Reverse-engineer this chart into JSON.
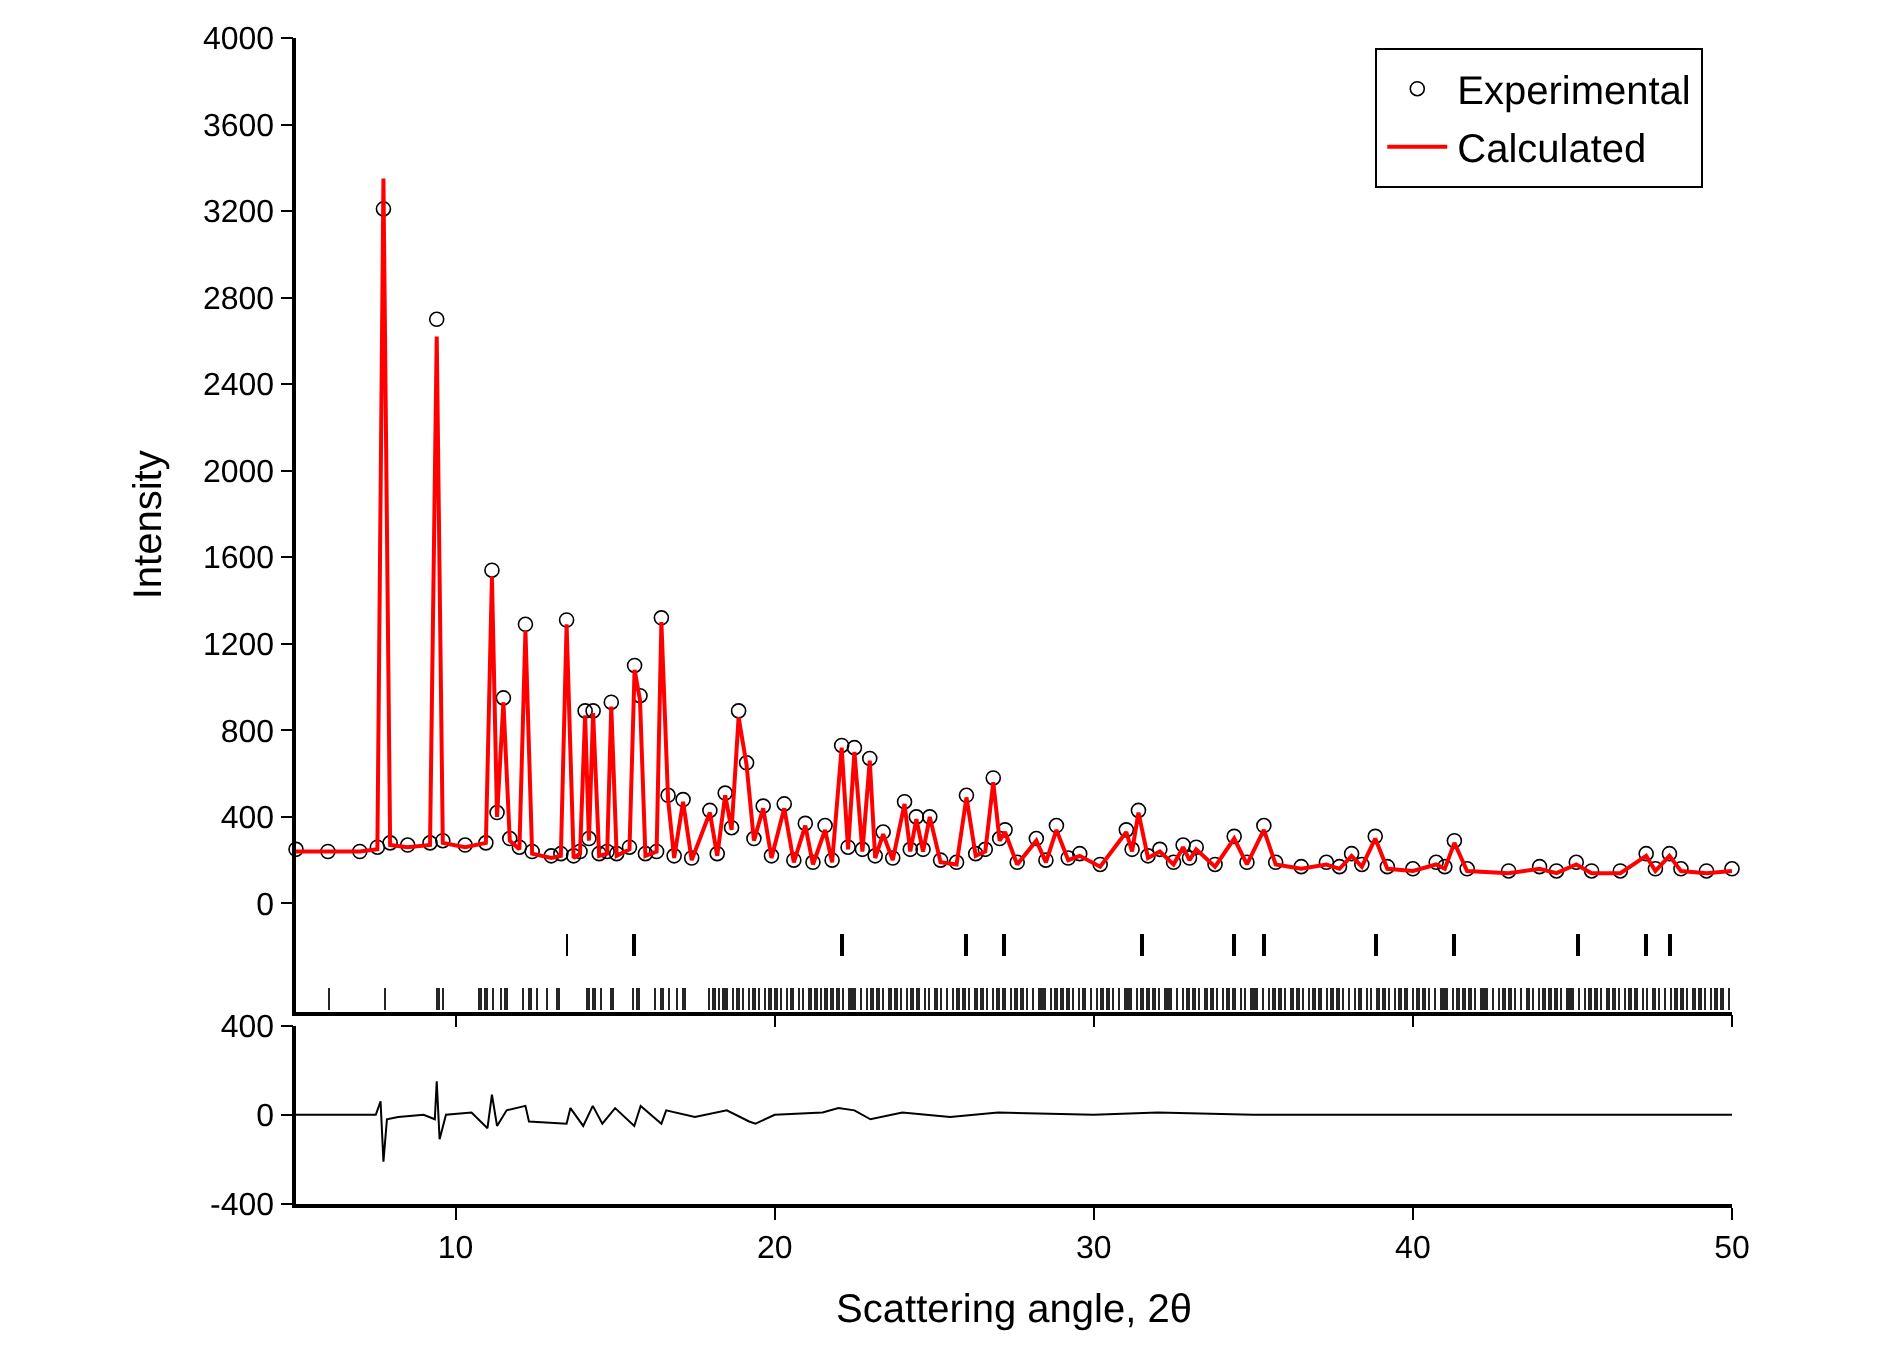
{
  "chart_data": [
    {
      "type": "line",
      "ylabel": "Intensity",
      "xlim": [
        5,
        50
      ],
      "xticks": [
        10,
        20,
        30,
        40,
        50
      ],
      "ylim": [
        -500,
        4000
      ],
      "yticks": [
        0,
        400,
        800,
        1200,
        1600,
        2000,
        2400,
        2800,
        3200,
        3600,
        4000
      ],
      "tick_labels": "y",
      "grid": false,
      "legend": "top right",
      "line_style": "solid",
      "x": [
        5.0,
        6.0,
        7.0,
        7.55,
        7.74,
        7.95,
        8.5,
        9.2,
        9.41,
        9.6,
        10.3,
        10.95,
        11.14,
        11.3,
        11.5,
        11.7,
        12.0,
        12.19,
        12.4,
        13.0,
        13.3,
        13.48,
        13.7,
        13.9,
        14.06,
        14.18,
        14.31,
        14.5,
        14.75,
        14.88,
        15.05,
        15.45,
        15.61,
        15.78,
        15.95,
        16.3,
        16.45,
        16.66,
        16.85,
        17.13,
        17.4,
        17.97,
        18.2,
        18.45,
        18.65,
        18.87,
        19.12,
        19.35,
        19.64,
        19.9,
        20.3,
        20.6,
        20.96,
        21.2,
        21.58,
        21.8,
        22.1,
        22.3,
        22.5,
        22.75,
        22.98,
        23.15,
        23.4,
        23.7,
        24.07,
        24.25,
        24.44,
        24.65,
        24.86,
        25.2,
        25.7,
        26.01,
        26.3,
        26.6,
        26.85,
        27.05,
        27.22,
        27.6,
        28.2,
        28.5,
        28.83,
        29.2,
        29.56,
        30.2,
        31.02,
        31.2,
        31.4,
        31.7,
        32.07,
        32.5,
        32.8,
        33.0,
        33.21,
        33.8,
        34.4,
        34.8,
        35.33,
        35.7,
        36.5,
        37.29,
        37.7,
        38.08,
        38.4,
        38.82,
        39.2,
        40.0,
        40.73,
        41.0,
        41.3,
        41.7,
        43.0,
        43.97,
        44.5,
        45.12,
        45.6,
        46.5,
        47.31,
        47.6,
        48.04,
        48.4,
        49.2,
        50.0
      ],
      "series": [
        {
          "name": "Experimental",
          "type": "scatter",
          "marker": "circle",
          "color": "#000000",
          "values": [
            250,
            240,
            240,
            260,
            3210,
            280,
            270,
            280,
            2700,
            290,
            270,
            280,
            1540,
            420,
            950,
            300,
            260,
            1290,
            240,
            220,
            230,
            1310,
            220,
            240,
            890,
            300,
            890,
            230,
            240,
            930,
            230,
            260,
            1100,
            960,
            230,
            240,
            1320,
            500,
            220,
            480,
            210,
            430,
            230,
            510,
            350,
            890,
            650,
            300,
            450,
            220,
            460,
            200,
            370,
            190,
            360,
            200,
            730,
            260,
            720,
            250,
            670,
            220,
            330,
            210,
            470,
            250,
            400,
            250,
            400,
            200,
            190,
            500,
            230,
            250,
            580,
            300,
            340,
            190,
            300,
            200,
            360,
            210,
            230,
            180,
            340,
            250,
            430,
            220,
            250,
            190,
            270,
            210,
            260,
            180,
            310,
            190,
            360,
            190,
            170,
            190,
            170,
            230,
            180,
            310,
            170,
            160,
            190,
            170,
            290,
            160,
            150,
            170,
            150,
            190,
            150,
            150,
            230,
            160,
            230,
            160,
            150,
            160
          ]
        },
        {
          "name": "Calculated",
          "type": "line",
          "marker": "none",
          "color": "#ff0000",
          "values": [
            240,
            240,
            240,
            250,
            3350,
            270,
            260,
            270,
            2620,
            280,
            260,
            280,
            1510,
            400,
            930,
            290,
            250,
            1260,
            230,
            210,
            220,
            1290,
            210,
            230,
            870,
            290,
            880,
            220,
            230,
            910,
            220,
            250,
            1080,
            940,
            220,
            240,
            1300,
            480,
            210,
            470,
            200,
            420,
            220,
            500,
            340,
            860,
            640,
            290,
            440,
            210,
            440,
            190,
            360,
            180,
            340,
            190,
            720,
            250,
            700,
            240,
            660,
            210,
            320,
            200,
            460,
            240,
            390,
            240,
            400,
            190,
            180,
            490,
            220,
            240,
            560,
            290,
            330,
            180,
            290,
            190,
            340,
            200,
            220,
            170,
            330,
            240,
            420,
            210,
            240,
            180,
            260,
            200,
            250,
            170,
            300,
            180,
            340,
            180,
            160,
            180,
            160,
            220,
            170,
            300,
            160,
            150,
            180,
            160,
            280,
            150,
            140,
            160,
            140,
            180,
            140,
            140,
            220,
            150,
            220,
            150,
            140,
            150
          ]
        },
        {
          "type": "bar",
          "color": "#000000",
          "x": [
            13.48,
            15.59,
            22.1,
            25.99,
            27.18,
            31.5,
            34.39,
            35.33,
            38.83,
            41.28,
            45.16,
            47.29,
            48.04
          ],
          "base": [
            -240,
            -240,
            -240,
            -240,
            -240,
            -240,
            -240,
            -240,
            -240,
            -240,
            -240,
            -240,
            -240
          ],
          "values": [
            100,
            100,
            100,
            100,
            100,
            100,
            100,
            100,
            100,
            100,
            100,
            100,
            100
          ]
        },
        {
          "type": "bar",
          "color": "#262626",
          "x": [
            6.03,
            7.78,
            9.44,
            9.61,
            10.76,
            10.94,
            11.17,
            11.41,
            11.59,
            12.12,
            12.33,
            12.54,
            12.86,
            13.22,
            14.14,
            14.34,
            14.55,
            14.9,
            15.55,
            15.73,
            16.26,
            16.47,
            16.7,
            16.94,
            17.15,
            17.94,
            18.1,
            18.25,
            18.4,
            18.52,
            18.7,
            18.85,
            19.0,
            19.2,
            19.35,
            19.5,
            19.7,
            19.85,
            20.05,
            20.2,
            20.4,
            20.55,
            20.75,
            20.9,
            21.1,
            21.3,
            21.45,
            21.6,
            21.8,
            22.0,
            22.15,
            22.35,
            22.5,
            22.7,
            22.9,
            23.05,
            23.25,
            23.4,
            23.6,
            23.8,
            23.95,
            24.15,
            24.3,
            24.5,
            24.7,
            24.85,
            25.05,
            25.2,
            25.4,
            25.6,
            25.75,
            25.95,
            26.1,
            26.3,
            26.5,
            26.65,
            26.85,
            27.0,
            27.2,
            27.4,
            27.55,
            27.75,
            27.9,
            28.1,
            28.3,
            28.45,
            28.65,
            28.8,
            29.0,
            29.2,
            29.35,
            29.55,
            29.7,
            29.9,
            30.1,
            30.25,
            30.45,
            30.6,
            30.8,
            31.0,
            31.15,
            31.35,
            31.5,
            31.7,
            31.9,
            32.05,
            32.25,
            32.4,
            32.6,
            32.8,
            32.95,
            33.15,
            33.3,
            33.5,
            33.7,
            33.85,
            34.05,
            34.2,
            34.4,
            34.6,
            34.75,
            34.95,
            35.1,
            35.3,
            35.5,
            35.65,
            35.85,
            36.0,
            36.2,
            36.4,
            36.55,
            36.75,
            36.9,
            37.1,
            37.3,
            37.45,
            37.65,
            37.8,
            38.0,
            38.2,
            38.35,
            38.55,
            38.7,
            38.9,
            39.1,
            39.25,
            39.45,
            39.6,
            39.8,
            40.0,
            40.15,
            40.35,
            40.5,
            40.7,
            40.9,
            41.05,
            41.25,
            41.4,
            41.6,
            41.8,
            41.95,
            42.15,
            42.3,
            42.5,
            42.7,
            42.85,
            43.05,
            43.2,
            43.4,
            43.6,
            43.75,
            43.95,
            44.1,
            44.3,
            44.5,
            44.65,
            44.85,
            45.0,
            45.2,
            45.4,
            45.55,
            45.75,
            45.9,
            46.1,
            46.3,
            46.45,
            46.65,
            46.8,
            47.0,
            47.2,
            47.35,
            47.55,
            47.7,
            47.9,
            48.1,
            48.25,
            48.45,
            48.6,
            48.8,
            49.0,
            49.15,
            49.35,
            49.5,
            49.7,
            49.9
          ],
          "base": [
            -490,
            -490,
            -490,
            -490,
            -490,
            -490,
            -490,
            -490,
            -490,
            -490,
            -490,
            -490,
            -490,
            -490,
            -490,
            -490,
            -490,
            -490,
            -490,
            -490,
            -490,
            -490,
            -490,
            -490,
            -490,
            -490,
            -490,
            -490,
            -490,
            -490,
            -490,
            -490,
            -490,
            -490,
            -490,
            -490,
            -490,
            -490,
            -490,
            -490,
            -490,
            -490,
            -490,
            -490,
            -490,
            -490,
            -490,
            -490,
            -490,
            -490,
            -490,
            -490,
            -490,
            -490,
            -490,
            -490,
            -490,
            -490,
            -490,
            -490,
            -490,
            -490,
            -490,
            -490,
            -490,
            -490,
            -490,
            -490,
            -490,
            -490,
            -490,
            -490,
            -490,
            -490,
            -490,
            -490,
            -490,
            -490,
            -490,
            -490,
            -490,
            -490,
            -490,
            -490,
            -490,
            -490,
            -490,
            -490,
            -490,
            -490,
            -490,
            -490,
            -490,
            -490,
            -490,
            -490,
            -490,
            -490,
            -490,
            -490,
            -490,
            -490,
            -490,
            -490,
            -490,
            -490,
            -490,
            -490,
            -490,
            -490,
            -490,
            -490,
            -490,
            -490,
            -490,
            -490,
            -490,
            -490,
            -490,
            -490,
            -490,
            -490,
            -490,
            -490,
            -490,
            -490,
            -490,
            -490,
            -490,
            -490,
            -490,
            -490,
            -490,
            -490,
            -490,
            -490,
            -490,
            -490,
            -490,
            -490,
            -490,
            -490,
            -490,
            -490,
            -490,
            -490,
            -490,
            -490,
            -490,
            -490,
            -490,
            -490,
            -490,
            -490,
            -490,
            -490,
            -490,
            -490,
            -490,
            -490,
            -490,
            -490,
            -490,
            -490,
            -490,
            -490,
            -490,
            -490,
            -490,
            -490,
            -490,
            -490,
            -490,
            -490,
            -490,
            -490,
            -490,
            -490,
            -490,
            -490,
            -490,
            -490,
            -490,
            -490,
            -490,
            -490,
            -490,
            -490,
            -490,
            -490,
            -490,
            -490,
            -490,
            -490,
            -490,
            -490,
            -490,
            -490,
            -490,
            -490,
            -490,
            -490,
            -490,
            -490,
            -490
          ],
          "values": [
            100,
            100,
            100,
            100,
            100,
            100,
            100,
            100,
            100,
            100,
            100,
            100,
            100,
            100,
            100,
            100,
            100,
            100,
            100,
            100,
            100,
            100,
            100,
            100,
            100,
            100,
            100,
            100,
            100,
            100,
            100,
            100,
            100,
            100,
            100,
            100,
            100,
            100,
            100,
            100,
            100,
            100,
            100,
            100,
            100,
            100,
            100,
            100,
            100,
            100,
            100,
            100,
            100,
            100,
            100,
            100,
            100,
            100,
            100,
            100,
            100,
            100,
            100,
            100,
            100,
            100,
            100,
            100,
            100,
            100,
            100,
            100,
            100,
            100,
            100,
            100,
            100,
            100,
            100,
            100,
            100,
            100,
            100,
            100,
            100,
            100,
            100,
            100,
            100,
            100,
            100,
            100,
            100,
            100,
            100,
            100,
            100,
            100,
            100,
            100,
            100,
            100,
            100,
            100,
            100,
            100,
            100,
            100,
            100,
            100,
            100,
            100,
            100,
            100,
            100,
            100,
            100,
            100,
            100,
            100,
            100,
            100,
            100,
            100,
            100,
            100,
            100,
            100,
            100,
            100,
            100,
            100,
            100,
            100,
            100,
            100,
            100,
            100,
            100,
            100,
            100,
            100,
            100,
            100,
            100,
            100,
            100,
            100,
            100,
            100,
            100,
            100,
            100,
            100,
            100,
            100,
            100,
            100,
            100,
            100,
            100,
            100,
            100,
            100,
            100,
            100,
            100,
            100,
            100,
            100,
            100,
            100,
            100,
            100,
            100,
            100,
            100,
            100,
            100,
            100,
            100,
            100,
            100,
            100,
            100,
            100,
            100,
            100,
            100,
            100,
            100,
            100,
            100,
            100,
            100,
            100,
            100,
            100,
            100,
            100,
            100,
            100,
            100,
            100,
            100
          ]
        }
      ]
    },
    {
      "type": "line",
      "xlabel": "Scattering angle, 2θ",
      "xlim": [
        5,
        50
      ],
      "xticks": [
        10,
        20,
        30,
        40,
        50
      ],
      "ylim": [
        -400,
        400
      ],
      "yticks": [
        -400,
        0,
        400
      ],
      "grid": false,
      "line_style": "solid",
      "marker": "none",
      "x": [
        5,
        7.5,
        7.65,
        7.74,
        7.85,
        8.2,
        9.0,
        9.35,
        9.41,
        9.5,
        9.7,
        10.5,
        11.0,
        11.14,
        11.3,
        11.6,
        12.19,
        12.3,
        13.48,
        13.6,
        14.0,
        14.3,
        14.6,
        15.0,
        15.6,
        15.8,
        16.45,
        16.6,
        17.5,
        18.5,
        19.2,
        19.4,
        20,
        21.5,
        22,
        22.5,
        23,
        24,
        25.5,
        27,
        30,
        32,
        35,
        40,
        45,
        50
      ],
      "series": [
        {
          "color": "#000000",
          "values": [
            0,
            0,
            60,
            -210,
            -20,
            -10,
            0,
            -20,
            150,
            -110,
            0,
            10,
            -60,
            90,
            -50,
            20,
            40,
            -30,
            -40,
            30,
            -50,
            40,
            -40,
            30,
            -50,
            40,
            -40,
            20,
            -10,
            20,
            -30,
            -40,
            0,
            10,
            30,
            20,
            -20,
            10,
            -10,
            10,
            0,
            10,
            0,
            0,
            0,
            0
          ]
        }
      ]
    }
  ]
}
